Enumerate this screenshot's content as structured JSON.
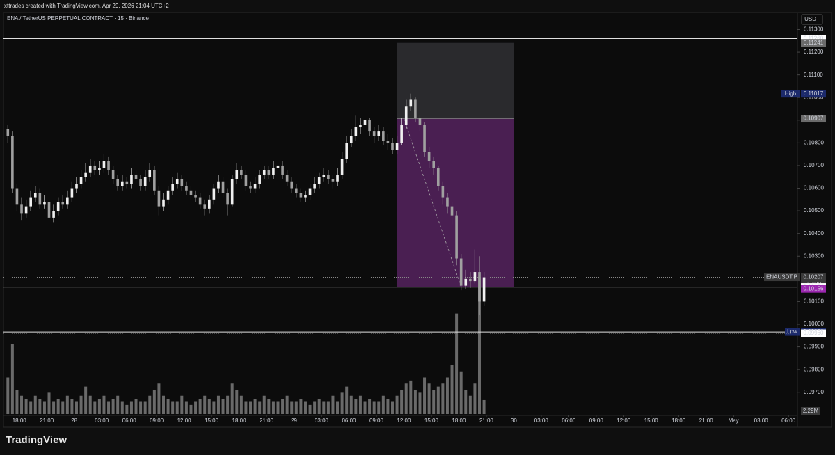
{
  "header": "xttrades created with TradingView.com, Apr 29, 2026 21:04 UTC+2",
  "logo": "TradingView",
  "chart_data": {
    "type": "candlestick",
    "title": "ENA / TetherUS PERPETUAL CONTRACT · 15 · Binance",
    "unit": "USDT",
    "up_color": "#f0f0f0",
    "down_color": "#a0a0a0",
    "xlim": [
      0,
      345
    ],
    "ylim": [
      0.09604,
      0.11323
    ],
    "yticks": [
      {
        "value": 0.097,
        "label": "0.09700"
      },
      {
        "value": 0.098,
        "label": "0.09800"
      },
      {
        "value": 0.099,
        "label": "0.09900"
      },
      {
        "value": 0.1,
        "label": "0.10000"
      },
      {
        "value": 0.101,
        "label": "0.10100"
      },
      {
        "value": 0.102,
        "label": "0.10200"
      },
      {
        "value": 0.103,
        "label": "0.10300"
      },
      {
        "value": 0.104,
        "label": "0.10400"
      },
      {
        "value": 0.105,
        "label": "0.10500"
      },
      {
        "value": 0.106,
        "label": "0.10600"
      },
      {
        "value": 0.107,
        "label": "0.10700"
      },
      {
        "value": 0.108,
        "label": "0.10800"
      },
      {
        "value": 0.109,
        "label": "0.10900"
      },
      {
        "value": 0.11,
        "label": "0.11000"
      },
      {
        "value": 0.111,
        "label": "0.11100"
      },
      {
        "value": 0.112,
        "label": "0.11200"
      },
      {
        "value": 0.113,
        "label": "0.11300"
      }
    ],
    "xticks": [
      {
        "value": 6,
        "label": "18:00"
      },
      {
        "value": 18,
        "label": "21:00"
      },
      {
        "value": 30,
        "label": "28"
      },
      {
        "value": 42,
        "label": "03:00"
      },
      {
        "value": 54,
        "label": "06:00"
      },
      {
        "value": 66,
        "label": "09:00"
      },
      {
        "value": 78,
        "label": "12:00"
      },
      {
        "value": 90,
        "label": "15:00"
      },
      {
        "value": 102,
        "label": "18:00"
      },
      {
        "value": 114,
        "label": "21:00"
      },
      {
        "value": 126,
        "label": "29"
      },
      {
        "value": 138,
        "label": "03:00"
      },
      {
        "value": 150,
        "label": "06:00"
      },
      {
        "value": 162,
        "label": "09:00"
      },
      {
        "value": 174,
        "label": "12:00"
      },
      {
        "value": 186,
        "label": "15:00"
      },
      {
        "value": 198,
        "label": "18:00"
      },
      {
        "value": 210,
        "label": "21:00"
      },
      {
        "value": 222,
        "label": "30"
      },
      {
        "value": 234,
        "label": "03:00"
      },
      {
        "value": 246,
        "label": "06:00"
      },
      {
        "value": 258,
        "label": "09:00"
      },
      {
        "value": 270,
        "label": "12:00"
      },
      {
        "value": 282,
        "label": "15:00"
      },
      {
        "value": 294,
        "label": "18:00"
      },
      {
        "value": 306,
        "label": "21:00"
      },
      {
        "value": 318,
        "label": "May"
      },
      {
        "value": 330,
        "label": "03:00"
      },
      {
        "value": 342,
        "label": "06:00"
      }
    ],
    "x": [
      1,
      3,
      5,
      7,
      9,
      11,
      13,
      15,
      17,
      19,
      21,
      23,
      25,
      27,
      29,
      31,
      33,
      35,
      37,
      39,
      41,
      43,
      45,
      47,
      49,
      51,
      53,
      55,
      57,
      59,
      61,
      63,
      65,
      67,
      69,
      71,
      73,
      75,
      77,
      79,
      81,
      83,
      85,
      87,
      89,
      91,
      93,
      95,
      97,
      99,
      101,
      103,
      105,
      107,
      109,
      111,
      113,
      115,
      117,
      119,
      121,
      123,
      125,
      127,
      129,
      131,
      133,
      135,
      137,
      139,
      141,
      143,
      145,
      147,
      149,
      151,
      153,
      155,
      157,
      159,
      161,
      163,
      165,
      167,
      169,
      171,
      173,
      175,
      177,
      179,
      181,
      183,
      185,
      187,
      189,
      191,
      193,
      195,
      197,
      199,
      201,
      203,
      205,
      207,
      209
    ],
    "open": [
      0.1086,
      0.1083,
      0.106,
      0.1053,
      0.1049,
      0.1052,
      0.1056,
      0.1058,
      0.1053,
      0.1054,
      0.1047,
      0.105,
      0.1054,
      0.1053,
      0.1056,
      0.106,
      0.1062,
      0.1065,
      0.1067,
      0.107,
      0.1068,
      0.1069,
      0.1072,
      0.1068,
      0.1064,
      0.1061,
      0.1063,
      0.1062,
      0.1066,
      0.1064,
      0.1061,
      0.1065,
      0.1068,
      0.1059,
      0.1052,
      0.1055,
      0.1059,
      0.1062,
      0.1064,
      0.1061,
      0.1059,
      0.1057,
      0.1056,
      0.1053,
      0.1051,
      0.1055,
      0.106,
      0.1063,
      0.1058,
      0.1053,
      0.1064,
      0.1068,
      0.1066,
      0.1061,
      0.106,
      0.1062,
      0.1066,
      0.1068,
      0.1066,
      0.1069,
      0.107,
      0.1066,
      0.1063,
      0.106,
      0.1058,
      0.1056,
      0.1057,
      0.106,
      0.1062,
      0.1065,
      0.1066,
      0.1064,
      0.1063,
      0.1066,
      0.1073,
      0.108,
      0.1083,
      0.1087,
      0.1088,
      0.109,
      0.1085,
      0.1083,
      0.1085,
      0.1081,
      0.108,
      0.1077,
      0.108,
      0.1088,
      0.1096,
      0.1099,
      0.1091,
      0.1088,
      0.1076,
      0.1072,
      0.1069,
      0.1061,
      0.1056,
      0.1052,
      0.1048,
      0.1029,
      0.1017,
      0.102,
      0.1019,
      0.1023,
      0.101
    ],
    "high": [
      0.1088,
      0.1085,
      0.1062,
      0.1056,
      0.1055,
      0.1059,
      0.1061,
      0.106,
      0.1057,
      0.1056,
      0.1053,
      0.1056,
      0.1057,
      0.1059,
      0.1063,
      0.1065,
      0.1068,
      0.1071,
      0.1073,
      0.1072,
      0.1072,
      0.1075,
      0.1074,
      0.107,
      0.1066,
      0.1066,
      0.1065,
      0.1069,
      0.1068,
      0.1066,
      0.1068,
      0.1071,
      0.107,
      0.1061,
      0.1058,
      0.1061,
      0.1065,
      0.1067,
      0.1066,
      0.1063,
      0.1061,
      0.1059,
      0.1058,
      0.1055,
      0.1057,
      0.1062,
      0.1066,
      0.1065,
      0.106,
      0.1066,
      0.1071,
      0.107,
      0.1068,
      0.1063,
      0.1065,
      0.1068,
      0.107,
      0.107,
      0.1072,
      0.1073,
      0.1072,
      0.1068,
      0.1065,
      0.1062,
      0.106,
      0.1059,
      0.1062,
      0.1065,
      0.1067,
      0.1069,
      0.1068,
      0.1066,
      0.1069,
      0.1076,
      0.1083,
      0.1086,
      0.1092,
      0.1091,
      0.1092,
      0.1091,
      0.1087,
      0.1088,
      0.1087,
      0.1084,
      0.1082,
      0.1083,
      0.1091,
      0.1099,
      0.11017,
      0.11,
      0.1092,
      0.1089,
      0.1078,
      0.1074,
      0.107,
      0.1063,
      0.1058,
      0.1054,
      0.105,
      0.1031,
      0.1024,
      0.1023,
      0.1033,
      0.103,
      0.1023
    ],
    "low": [
      0.108,
      0.1058,
      0.105,
      0.1046,
      0.1047,
      0.105,
      0.1054,
      0.1051,
      0.1051,
      0.104,
      0.1045,
      0.1048,
      0.1051,
      0.1051,
      0.1054,
      0.1058,
      0.106,
      0.1063,
      0.1065,
      0.1066,
      0.1066,
      0.1067,
      0.1066,
      0.1062,
      0.1059,
      0.1059,
      0.106,
      0.106,
      0.1062,
      0.1059,
      0.1059,
      0.1063,
      0.1057,
      0.1048,
      0.105,
      0.1053,
      0.1057,
      0.106,
      0.1059,
      0.1057,
      0.1055,
      0.1054,
      0.1051,
      0.1048,
      0.1049,
      0.1053,
      0.1058,
      0.1056,
      0.1048,
      0.1052,
      0.1062,
      0.1064,
      0.1059,
      0.1058,
      0.1058,
      0.106,
      0.1064,
      0.1064,
      0.1064,
      0.1067,
      0.1064,
      0.1061,
      0.1058,
      0.1056,
      0.1054,
      0.1054,
      0.1055,
      0.1058,
      0.106,
      0.1063,
      0.1062,
      0.106,
      0.1061,
      0.1064,
      0.1071,
      0.1078,
      0.1081,
      0.1084,
      0.1086,
      0.1083,
      0.108,
      0.1081,
      0.1079,
      0.1077,
      0.1075,
      0.1075,
      0.1079,
      0.1086,
      0.1094,
      0.1089,
      0.1085,
      0.1074,
      0.1069,
      0.1066,
      0.1059,
      0.1053,
      0.1049,
      0.1044,
      0.1026,
      0.1015,
      0.10156,
      0.1016,
      0.1018,
      0.1004,
      0.1008
    ],
    "close": [
      0.1083,
      0.106,
      0.1053,
      0.1049,
      0.1052,
      0.1056,
      0.1058,
      0.1053,
      0.1054,
      0.1047,
      0.105,
      0.1054,
      0.1053,
      0.1056,
      0.106,
      0.1062,
      0.1065,
      0.1067,
      0.107,
      0.1068,
      0.1069,
      0.1072,
      0.1068,
      0.1064,
      0.1061,
      0.1063,
      0.1062,
      0.1066,
      0.1064,
      0.1061,
      0.1065,
      0.1068,
      0.1059,
      0.1052,
      0.1055,
      0.1059,
      0.1062,
      0.1064,
      0.1061,
      0.1059,
      0.1057,
      0.1056,
      0.1053,
      0.1051,
      0.1055,
      0.106,
      0.1063,
      0.1058,
      0.1053,
      0.1064,
      0.1068,
      0.1066,
      0.1061,
      0.106,
      0.1062,
      0.1066,
      0.1068,
      0.1066,
      0.1069,
      0.107,
      0.1066,
      0.1063,
      0.106,
      0.1058,
      0.1056,
      0.1057,
      0.106,
      0.1062,
      0.1065,
      0.1066,
      0.1064,
      0.1063,
      0.1066,
      0.1073,
      0.108,
      0.1083,
      0.1087,
      0.1088,
      0.109,
      0.1085,
      0.1083,
      0.1085,
      0.1081,
      0.108,
      0.1077,
      0.108,
      0.1088,
      0.1096,
      0.1099,
      0.1091,
      0.1088,
      0.1076,
      0.1072,
      0.1069,
      0.1061,
      0.1056,
      0.1052,
      0.1048,
      0.1029,
      0.1017,
      0.102,
      0.1019,
      0.1023,
      0.101,
      0.10207
    ],
    "volume": {
      "color": "#6a6a6a",
      "ylim": [
        0,
        64
      ],
      "last_value_label": "2.29M",
      "values": [
        6,
        11.5,
        4,
        3,
        2.5,
        2,
        3,
        2.5,
        2,
        3.5,
        2,
        2.5,
        2,
        3,
        2.5,
        2,
        3,
        4.5,
        3,
        2,
        2.5,
        3,
        2,
        2.5,
        3,
        2,
        1.5,
        2,
        2.5,
        2,
        2,
        3,
        4,
        5,
        3,
        2.5,
        2,
        2,
        3,
        2,
        1.5,
        2,
        2.5,
        3,
        2.5,
        2,
        3,
        2.5,
        3,
        5,
        4,
        3,
        2,
        2,
        2.5,
        2,
        3,
        2.5,
        2,
        2,
        2.5,
        3,
        2,
        2,
        2.5,
        2,
        1.5,
        2,
        2.5,
        2,
        2,
        3,
        2,
        3.5,
        4.5,
        3,
        2.5,
        3,
        2,
        2.5,
        2,
        2,
        3,
        2.5,
        2,
        3,
        4,
        5,
        5.5,
        4,
        3.5,
        6,
        5,
        4,
        4.5,
        5,
        6,
        8,
        16.5,
        7,
        4,
        3,
        5,
        22.5,
        2.29
      ]
    },
    "position": {
      "x": [
        171,
        222
      ],
      "stop": 0.11241,
      "entry": 0.10907,
      "target": 0.10164,
      "path_x": [
        174,
        199
      ],
      "stop_color": "#2a2a2d",
      "target_color": "#4a1f52"
    },
    "price_levels": [
      {
        "value": 0.1126,
        "label": "0.11260",
        "kind": "solid",
        "badge_color": "#ffffff",
        "text_color": "#000000"
      },
      {
        "value": 0.11241,
        "label": "0.11241",
        "kind": "badge",
        "badge_color": "#6b6b6b",
        "text_color": "#ffffff"
      },
      {
        "value": 0.11017,
        "label": "0.11017",
        "tag": "High",
        "kind": "badge",
        "badge_color": "#1c2a6b",
        "text_color": "#ffffff"
      },
      {
        "value": 0.10907,
        "label": "0.10907",
        "kind": "badge",
        "badge_color": "#6b6b6b",
        "text_color": "#ffffff"
      },
      {
        "value": 0.10207,
        "label": "0.10207",
        "tag": "ENAUSDT.P",
        "countdown": "10:22",
        "kind": "dotted",
        "badge_color": "#3a3a3a",
        "text_color": "#ffffff"
      },
      {
        "value": 0.10164,
        "label": "0.10164",
        "kind": "solid",
        "badge_color": "#ffffff",
        "text_color": "#000000"
      },
      {
        "value": 0.10156,
        "label": "0.10156",
        "kind": "badge",
        "badge_color": "#9c27b0",
        "text_color": "#ffffff"
      },
      {
        "value": 0.09966,
        "label": "0.09966",
        "tag": "Low",
        "kind": "solid",
        "badge_color": "#1c2a6b",
        "text_color": "#ffffff"
      },
      {
        "value": 0.0996,
        "label": "0.09960",
        "kind": "dotted",
        "badge_color": "#ffffff",
        "text_color": "#000000"
      }
    ]
  }
}
